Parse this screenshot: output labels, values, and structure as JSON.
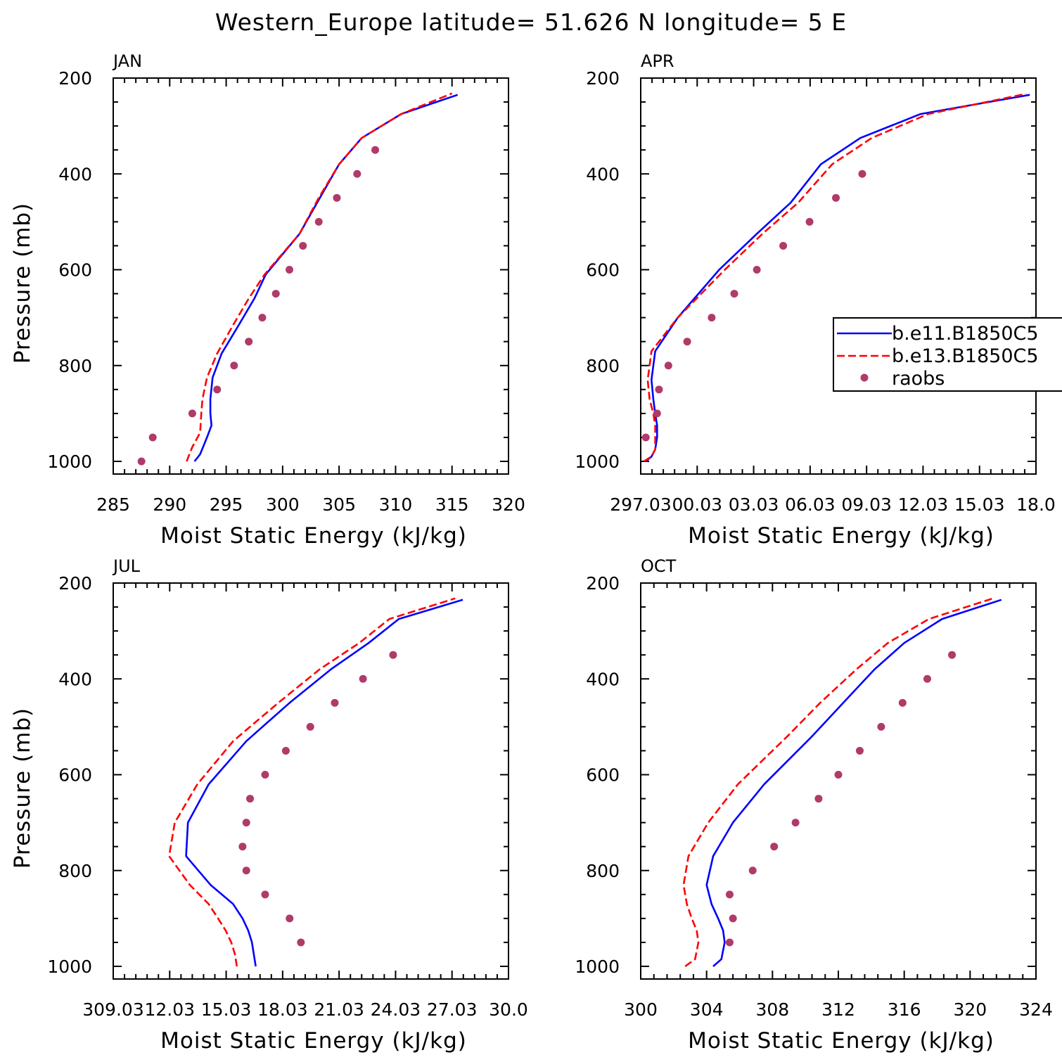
{
  "figure": {
    "title": "Western_Europe  latitude= 51.626 N longitude= 5 E"
  },
  "legend": {
    "entries": [
      {
        "label": "b.e11.B1850C5",
        "color": "#0000ff",
        "style": "solid"
      },
      {
        "label": "b.e13.B1850C5",
        "color": "#ff0000",
        "style": "dashed"
      },
      {
        "label": "raobs",
        "color": "#b03a6a",
        "style": "marker"
      }
    ]
  },
  "chart_data": [
    {
      "type": "line",
      "panel": "JAN",
      "xlabel": "Moist Static Energy (kJ/kg)",
      "ylabel": "Pressure (mb)",
      "xlim": [
        285,
        320
      ],
      "ylim": [
        1000,
        200
      ],
      "xticks": [
        "285",
        "290",
        "295",
        "300",
        "305",
        "310",
        "315",
        "320"
      ],
      "yticks": [
        "200",
        "400",
        "600",
        "800",
        "1000"
      ],
      "series": [
        {
          "name": "b.e11.B1850C5",
          "color": "#0000ff",
          "dashed": false,
          "points": [
            [
              292.2,
              1000
            ],
            [
              292.7,
              985
            ],
            [
              293.3,
              950
            ],
            [
              293.7,
              925
            ],
            [
              293.6,
              900
            ],
            [
              293.6,
              870
            ],
            [
              293.8,
              825
            ],
            [
              294.6,
              775
            ],
            [
              296.0,
              720
            ],
            [
              297.5,
              660
            ],
            [
              298.5,
              610
            ],
            [
              301.5,
              525
            ],
            [
              303.3,
              450
            ],
            [
              305.0,
              380
            ],
            [
              307.0,
              325
            ],
            [
              310.5,
              275
            ],
            [
              315.5,
              235
            ]
          ]
        },
        {
          "name": "b.e13.B1850C5",
          "color": "#ff0000",
          "dashed": false,
          "points": [
            [
              291.5,
              1000
            ],
            [
              292.0,
              970
            ],
            [
              292.7,
              940
            ],
            [
              292.8,
              900
            ],
            [
              292.9,
              870
            ],
            [
              293.3,
              825
            ],
            [
              294.2,
              775
            ],
            [
              295.5,
              720
            ],
            [
              297.0,
              660
            ],
            [
              298.4,
              610
            ],
            [
              301.5,
              525
            ],
            [
              303.2,
              450
            ],
            [
              305.0,
              380
            ],
            [
              307.0,
              325
            ],
            [
              310.5,
              275
            ],
            [
              315.0,
              232
            ]
          ]
        },
        {
          "name": "raobs",
          "color": "#b03a6a",
          "marker": true,
          "points": [
            [
              287.5,
              1000
            ],
            [
              288.5,
              950
            ],
            [
              292.0,
              900
            ],
            [
              294.2,
              850
            ],
            [
              295.7,
              800
            ],
            [
              297.0,
              750
            ],
            [
              298.2,
              700
            ],
            [
              299.4,
              650
            ],
            [
              300.6,
              600
            ],
            [
              301.8,
              550
            ],
            [
              303.2,
              500
            ],
            [
              304.8,
              450
            ],
            [
              306.6,
              400
            ],
            [
              308.2,
              350
            ]
          ]
        }
      ]
    },
    {
      "type": "line",
      "panel": "APR",
      "xlabel": "Moist Static Energy (kJ/kg)",
      "ylabel": "",
      "xlim": [
        297.03,
        318.03
      ],
      "ylim": [
        1000,
        200
      ],
      "xticks": [
        "297.03",
        "00.03",
        "03.03",
        "06.03",
        "09.03",
        "12.03",
        "15.03",
        "18.0"
      ],
      "yticks": [
        "200",
        "400",
        "600",
        "800",
        "1000"
      ],
      "series": [
        {
          "name": "b.e11.B1850C5",
          "color": "#0000ff",
          "dashed": false,
          "points": [
            [
              297.3,
              1000
            ],
            [
              297.6,
              990
            ],
            [
              297.8,
              975
            ],
            [
              297.9,
              950
            ],
            [
              297.9,
              925
            ],
            [
              297.8,
              900
            ],
            [
              297.7,
              870
            ],
            [
              297.6,
              830
            ],
            [
              297.8,
              770
            ],
            [
              299.0,
              700
            ],
            [
              301.2,
              600
            ],
            [
              303.2,
              525
            ],
            [
              305.0,
              460
            ],
            [
              306.6,
              380
            ],
            [
              308.7,
              325
            ],
            [
              311.9,
              275
            ],
            [
              317.7,
              235
            ]
          ]
        },
        {
          "name": "b.e13.B1850C5",
          "color": "#ff0000",
          "dashed": false,
          "points": [
            [
              297.2,
              1000
            ],
            [
              297.6,
              990
            ],
            [
              297.8,
              975
            ],
            [
              297.8,
              950
            ],
            [
              297.8,
              925
            ],
            [
              297.7,
              900
            ],
            [
              297.5,
              870
            ],
            [
              297.4,
              830
            ],
            [
              297.6,
              770
            ],
            [
              299.0,
              700
            ],
            [
              301.5,
              600
            ],
            [
              303.5,
              525
            ],
            [
              305.4,
              460
            ],
            [
              307.2,
              380
            ],
            [
              309.3,
              325
            ],
            [
              312.3,
              275
            ],
            [
              317.5,
              233
            ]
          ]
        },
        {
          "name": "raobs",
          "color": "#b03a6a",
          "marker": true,
          "points": [
            [
              297.3,
              950
            ],
            [
              297.9,
              900
            ],
            [
              298.0,
              850
            ],
            [
              298.5,
              800
            ],
            [
              299.5,
              750
            ],
            [
              300.8,
              700
            ],
            [
              302.0,
              650
            ],
            [
              303.2,
              600
            ],
            [
              304.6,
              550
            ],
            [
              306.0,
              500
            ],
            [
              307.4,
              450
            ],
            [
              308.8,
              400
            ]
          ]
        }
      ]
    },
    {
      "type": "line",
      "panel": "JUL",
      "xlabel": "Moist Static Energy (kJ/kg)",
      "ylabel": "Pressure (mb)",
      "xlim": [
        309.03,
        330.03
      ],
      "ylim": [
        1000,
        200
      ],
      "xticks": [
        "309.03",
        "12.03",
        "15.03",
        "18.03",
        "21.03",
        "24.03",
        "27.03",
        "30.0"
      ],
      "yticks": [
        "200",
        "400",
        "600",
        "800",
        "1000"
      ],
      "series": [
        {
          "name": "b.e11.B1850C5",
          "color": "#0000ff",
          "dashed": false,
          "points": [
            [
              316.6,
              1000
            ],
            [
              316.5,
              975
            ],
            [
              316.4,
              950
            ],
            [
              316.2,
              925
            ],
            [
              315.9,
              900
            ],
            [
              315.4,
              870
            ],
            [
              314.2,
              830
            ],
            [
              312.9,
              770
            ],
            [
              313.0,
              700
            ],
            [
              314.1,
              620
            ],
            [
              316.1,
              530
            ],
            [
              318.4,
              450
            ],
            [
              320.6,
              380
            ],
            [
              322.6,
              325
            ],
            [
              324.2,
              275
            ],
            [
              327.6,
              235
            ]
          ]
        },
        {
          "name": "b.e13.B1850C5",
          "color": "#ff0000",
          "dashed": true,
          "points": [
            [
              315.6,
              1000
            ],
            [
              315.5,
              975
            ],
            [
              315.3,
              950
            ],
            [
              315.0,
              925
            ],
            [
              314.6,
              900
            ],
            [
              314.1,
              870
            ],
            [
              313.1,
              830
            ],
            [
              312.0,
              770
            ],
            [
              312.3,
              700
            ],
            [
              313.5,
              620
            ],
            [
              315.4,
              530
            ],
            [
              317.8,
              450
            ],
            [
              320.0,
              380
            ],
            [
              322.1,
              325
            ],
            [
              323.7,
              275
            ],
            [
              327.2,
              232
            ]
          ]
        },
        {
          "name": "raobs",
          "color": "#b03a6a",
          "marker": true,
          "points": [
            [
              319.0,
              950
            ],
            [
              318.4,
              900
            ],
            [
              317.1,
              850
            ],
            [
              316.1,
              800
            ],
            [
              315.9,
              750
            ],
            [
              316.1,
              700
            ],
            [
              316.3,
              650
            ],
            [
              317.1,
              600
            ],
            [
              318.2,
              550
            ],
            [
              319.5,
              500
            ],
            [
              320.8,
              450
            ],
            [
              322.3,
              400
            ],
            [
              323.9,
              350
            ]
          ]
        }
      ]
    },
    {
      "type": "line",
      "panel": "OCT",
      "xlabel": "Moist Static Energy (kJ/kg)",
      "ylabel": "",
      "xlim": [
        300,
        324
      ],
      "ylim": [
        1000,
        200
      ],
      "xticks": [
        "300",
        "304",
        "308",
        "312",
        "316",
        "320",
        "324"
      ],
      "yticks": [
        "200",
        "400",
        "600",
        "800",
        "1000"
      ],
      "series": [
        {
          "name": "b.e11.B1850C5",
          "color": "#0000ff",
          "dashed": false,
          "points": [
            [
              304.4,
              1000
            ],
            [
              304.9,
              985
            ],
            [
              305.1,
              950
            ],
            [
              305.0,
              925
            ],
            [
              304.7,
              900
            ],
            [
              304.3,
              870
            ],
            [
              304.0,
              830
            ],
            [
              304.4,
              770
            ],
            [
              305.6,
              700
            ],
            [
              307.5,
              620
            ],
            [
              310.4,
              520
            ],
            [
              312.3,
              450
            ],
            [
              314.2,
              380
            ],
            [
              316.0,
              325
            ],
            [
              318.3,
              275
            ],
            [
              321.9,
              235
            ]
          ]
        },
        {
          "name": "b.e13.B1850C5",
          "color": "#ff0000",
          "dashed": true,
          "points": [
            [
              302.7,
              1000
            ],
            [
              303.3,
              985
            ],
            [
              303.5,
              950
            ],
            [
              303.4,
              925
            ],
            [
              303.1,
              900
            ],
            [
              302.8,
              870
            ],
            [
              302.6,
              830
            ],
            [
              302.9,
              770
            ],
            [
              304.1,
              700
            ],
            [
              305.9,
              620
            ],
            [
              308.9,
              520
            ],
            [
              310.9,
              450
            ],
            [
              313.1,
              380
            ],
            [
              315.0,
              325
            ],
            [
              317.5,
              275
            ],
            [
              321.4,
              232
            ]
          ]
        },
        {
          "name": "raobs",
          "color": "#b03a6a",
          "marker": true,
          "points": [
            [
              305.4,
              950
            ],
            [
              305.6,
              900
            ],
            [
              305.4,
              850
            ],
            [
              306.8,
              800
            ],
            [
              308.1,
              750
            ],
            [
              309.4,
              700
            ],
            [
              310.8,
              650
            ],
            [
              312.0,
              600
            ],
            [
              313.3,
              550
            ],
            [
              314.6,
              500
            ],
            [
              315.9,
              450
            ],
            [
              317.4,
              400
            ],
            [
              318.9,
              350
            ]
          ]
        }
      ]
    }
  ]
}
